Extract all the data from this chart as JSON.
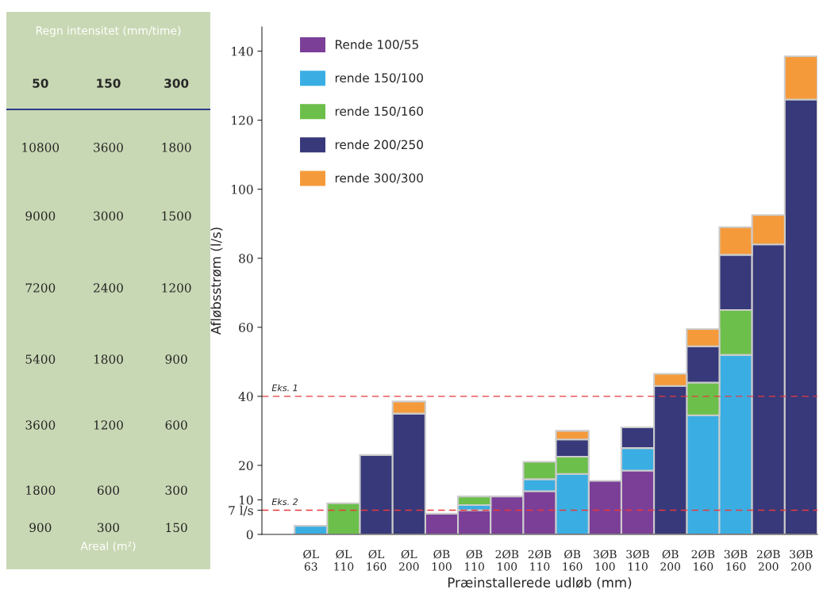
{
  "chart_data": [
    {
      "type": "other",
      "title": "Regn intensitet (mm/time)",
      "xlabel": "Areal (m²)",
      "categories": [
        "50",
        "150",
        "300"
      ],
      "cell_labels": [
        [
          "10800",
          "3600",
          "1800"
        ],
        [
          "9000",
          "3000",
          "1500"
        ],
        [
          "7200",
          "2400",
          "1200"
        ],
        [
          "5400",
          "1800",
          "900"
        ],
        [
          "3600",
          "1200",
          "600"
        ],
        [
          "1800",
          "600",
          "300"
        ],
        [
          "900",
          "300",
          "150"
        ]
      ]
    },
    {
      "type": "bar",
      "stacked": true,
      "xlabel": "Præinstallerede udløb (mm)",
      "ylabel": "Afløbsstrøm (l/s)",
      "categories": [
        "ØL\n63",
        "ØL\n110",
        "ØL\n160",
        "ØL\n200",
        "ØB\n100",
        "ØB\n110",
        "2ØB\n100",
        "2ØB\n110",
        "ØB\n160",
        "3ØB\n100",
        "3ØB\n110",
        "ØB\n200",
        "2ØB\n160",
        "3ØB\n160",
        "2ØB\n200",
        "3ØB\n200"
      ],
      "series": [
        {
          "name": "Rende 100/55",
          "color": "#7b3f98",
          "values": [
            null,
            null,
            null,
            null,
            6,
            7,
            11,
            12.5,
            null,
            15.5,
            18.5,
            null,
            null,
            null,
            null,
            null
          ]
        },
        {
          "name": "rende 150/100",
          "color": "#3aaee3",
          "values": [
            2.5,
            null,
            null,
            null,
            null,
            1.5,
            null,
            3.5,
            17.5,
            null,
            6.5,
            null,
            34.5,
            52,
            null,
            null
          ]
        },
        {
          "name": "rende 150/160",
          "color": "#6cbf4a",
          "values": [
            null,
            9,
            null,
            null,
            null,
            2.5,
            null,
            5,
            5,
            null,
            null,
            null,
            9.5,
            13,
            null,
            null
          ]
        },
        {
          "name": "rende 200/250",
          "color": "#37397a",
          "values": [
            null,
            null,
            23,
            35,
            null,
            null,
            null,
            null,
            5,
            null,
            6,
            43,
            10.5,
            16,
            84,
            126
          ]
        },
        {
          "name": "rende 300/300",
          "color": "#f59a3a",
          "values": [
            null,
            null,
            null,
            3.5,
            null,
            null,
            null,
            null,
            2.5,
            null,
            null,
            3.5,
            5,
            8,
            8.5,
            12.5
          ]
        }
      ],
      "ylim": [
        0,
        147
      ],
      "yticks": [
        0,
        {
          "value": 7,
          "label": "7 l/s"
        },
        10,
        20,
        40,
        60,
        80,
        100,
        120,
        140
      ],
      "legend": "top left",
      "grid": false,
      "ref_lines": [
        {
          "axis": "y",
          "value": 40,
          "label": "Eks. 1",
          "color": "#e8393c",
          "line_style": "dashed"
        },
        {
          "axis": "y",
          "value": 7,
          "label": "Eks. 2",
          "color": "#e8393c",
          "line_style": "dashed"
        }
      ]
    }
  ]
}
